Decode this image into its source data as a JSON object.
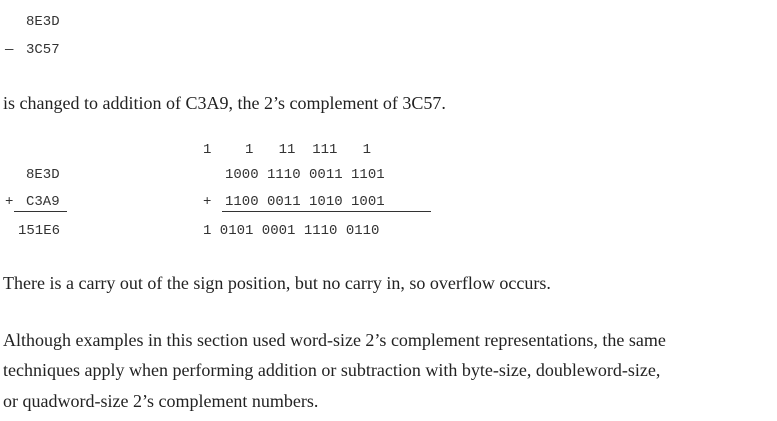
{
  "subtraction_example": {
    "minuend": "8E3D",
    "operator": "—",
    "subtrahend": "3C57"
  },
  "intro_sentence": "is changed to addition of C3A9, the 2’s complement of 3C57.",
  "hex_addition": {
    "addend1": "8E3D",
    "operator": "+",
    "addend2": "C3A9",
    "sum": "151E6"
  },
  "binary_addition": {
    "carries": "1    1   11  111   1",
    "addend1": "1000 1110 0011 1101",
    "operator": "+",
    "addend2": "1100 0011 1010 1001",
    "sum": "1 0101 0001 1110 0110"
  },
  "overflow_sentence": "There is a carry out of the sign position, but no carry in, so overflow occurs.",
  "closing_paragraph": {
    "line1": "Although examples in this section used word-size 2’s complement representations, the same",
    "line2": "techniques apply when performing addition or subtraction with byte-size, doubleword-size,",
    "line3": "or quadword-size 2’s complement numbers."
  }
}
